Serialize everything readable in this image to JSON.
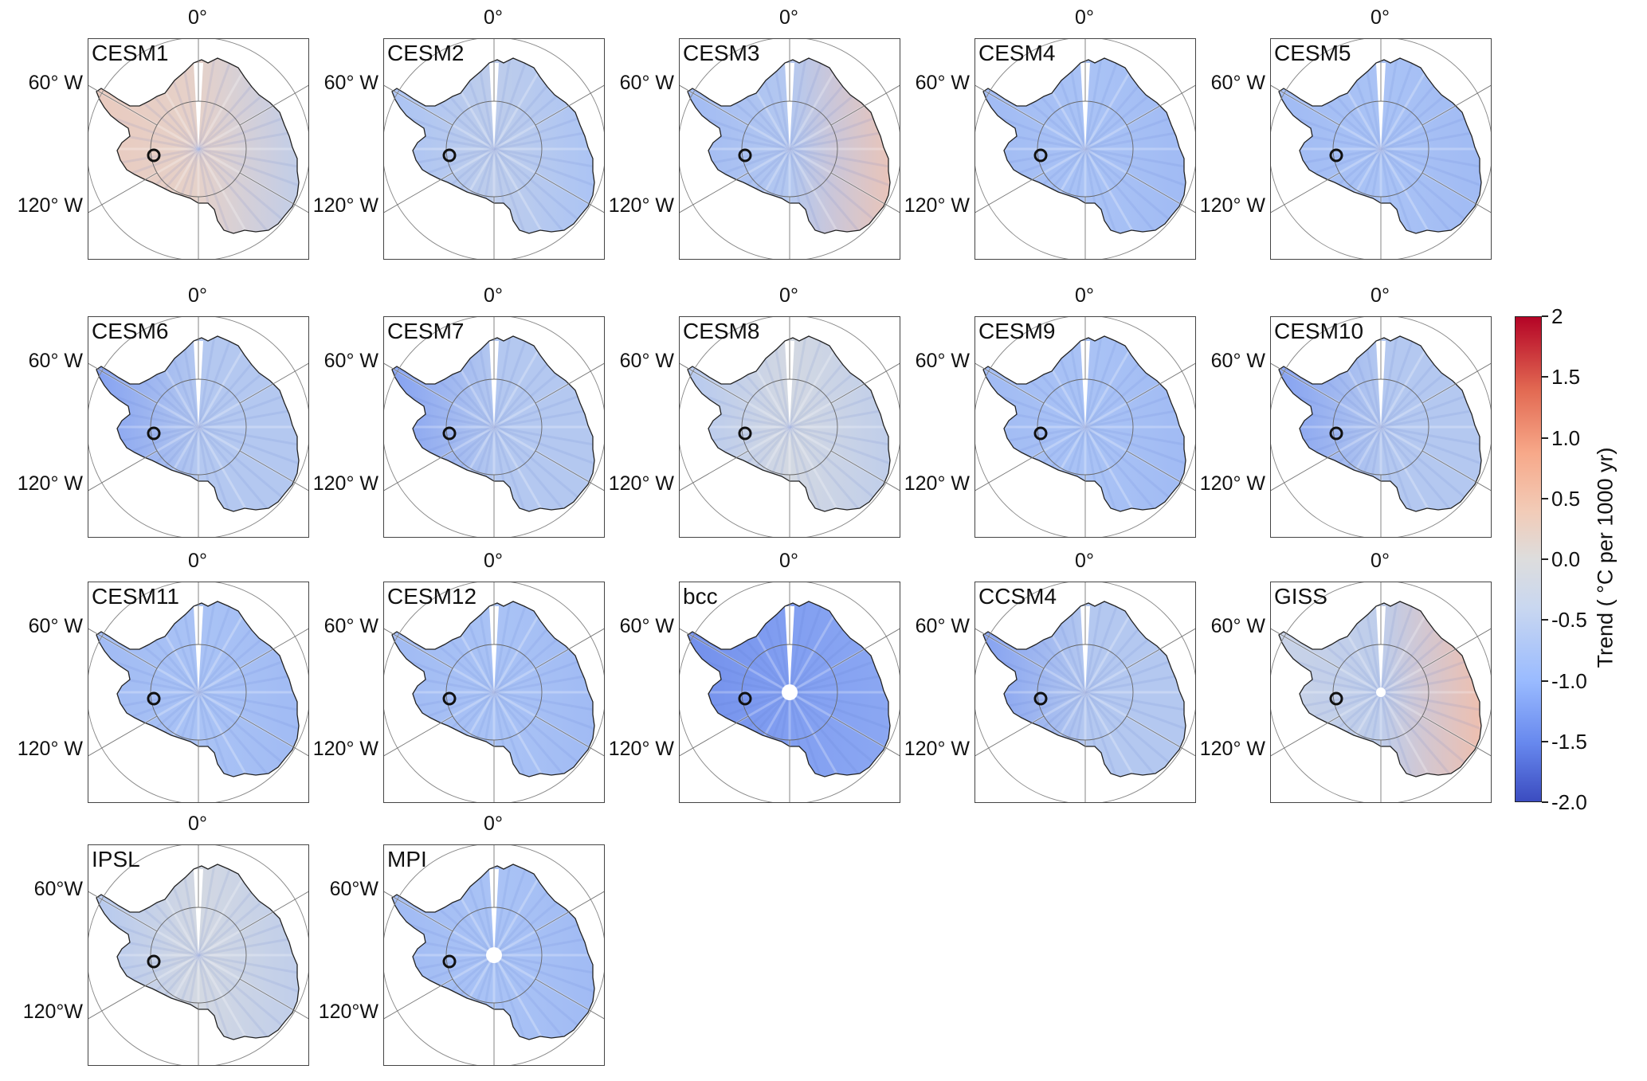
{
  "figure": {
    "panels": [
      {
        "name": "CESM1",
        "pattern": "warm",
        "lon0": "0°",
        "lon60": "60° W",
        "lon120": "120° W"
      },
      {
        "name": "CESM2",
        "pattern": "mixed",
        "lon0": "0°",
        "lon60": "60° W",
        "lon120": "120° W"
      },
      {
        "name": "CESM3",
        "pattern": "mixed-east-warm",
        "lon0": "0°",
        "lon60": "60° W",
        "lon120": "120° W"
      },
      {
        "name": "CESM4",
        "pattern": "cool",
        "lon0": "0°",
        "lon60": "60° W",
        "lon120": "120° W"
      },
      {
        "name": "CESM5",
        "pattern": "cool",
        "lon0": "0°",
        "lon60": "60° W",
        "lon120": "120° W"
      },
      {
        "name": "CESM6",
        "pattern": "cool-west",
        "lon0": "0°",
        "lon60": "60° W",
        "lon120": "120° W"
      },
      {
        "name": "CESM7",
        "pattern": "cool-west",
        "lon0": "0°",
        "lon60": "60° W",
        "lon120": "120° W"
      },
      {
        "name": "CESM8",
        "pattern": "neutral",
        "lon0": "0°",
        "lon60": "60° W",
        "lon120": "120° W"
      },
      {
        "name": "CESM9",
        "pattern": "cool",
        "lon0": "0°",
        "lon60": "60° W",
        "lon120": "120° W"
      },
      {
        "name": "CESM10",
        "pattern": "cool-west",
        "lon0": "0°",
        "lon60": "60° W",
        "lon120": "120° W"
      },
      {
        "name": "CESM11",
        "pattern": "cool",
        "lon0": "0°",
        "lon60": "60° W",
        "lon120": "120° W"
      },
      {
        "name": "CESM12",
        "pattern": "cool",
        "lon0": "0°",
        "lon60": "60° W",
        "lon120": "120° W"
      },
      {
        "name": "bcc",
        "pattern": "strong-cool",
        "lon0": "0°",
        "lon60": "60° W",
        "lon120": "120° W"
      },
      {
        "name": "CCSM4",
        "pattern": "cool-west",
        "lon0": "0°",
        "lon60": "60° W",
        "lon120": "120° W"
      },
      {
        "name": "GISS",
        "pattern": "warm-east",
        "lon0": "0°",
        "lon60": "60° W",
        "lon120": "120° W"
      },
      {
        "name": "IPSL",
        "pattern": "neutral",
        "lon0": "0°",
        "lon60": "60°W",
        "lon120": "120°W"
      },
      {
        "name": "MPI",
        "pattern": "cool",
        "lon0": "0°",
        "lon60": "60°W",
        "lon120": "120°W"
      }
    ],
    "colorbar": {
      "label": "Trend ( °C per 1000  yr)",
      "ticks": [
        "2",
        "1.5",
        "1.0",
        "0.5",
        "0.0",
        "-0.5",
        "-1.0",
        "-1.5",
        "-2.0"
      ],
      "min": -2.0,
      "max": 2.0,
      "colormap": "coolwarm",
      "colors": {
        "low": "#3b4cc0",
        "mid": "#dddddd",
        "high": "#b40426"
      }
    },
    "marker": {
      "shape": "open-circle",
      "color": "#111111"
    }
  }
}
